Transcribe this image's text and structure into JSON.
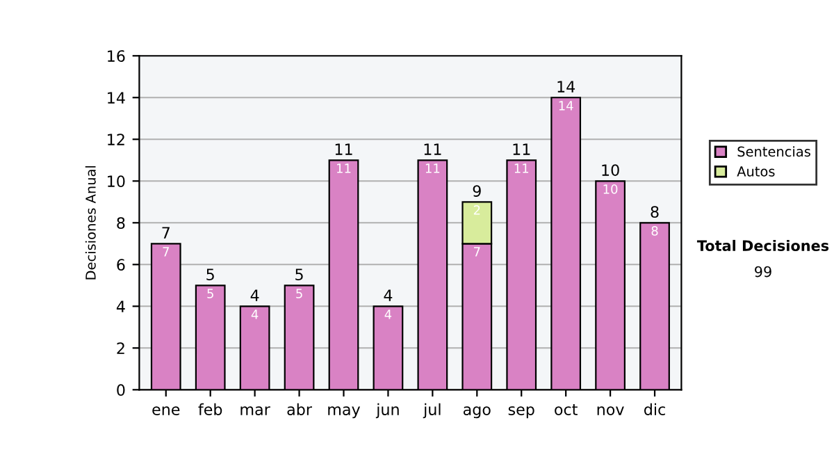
{
  "chart_data": {
    "type": "bar",
    "stacked": true,
    "ylabel": "Decisiones Anual",
    "categories": [
      "ene",
      "feb",
      "mar",
      "abr",
      "may",
      "jun",
      "jul",
      "ago",
      "sep",
      "oct",
      "nov",
      "dic"
    ],
    "series": [
      {
        "name": "Sentencias",
        "color": "#d982c4",
        "values": [
          7,
          5,
          4,
          5,
          11,
          4,
          11,
          7,
          11,
          14,
          10,
          8
        ],
        "value_labels": [
          "7",
          "5",
          "4",
          "5",
          "11",
          "4",
          "11",
          "7",
          "11",
          "14",
          "10",
          "8"
        ]
      },
      {
        "name": "Autos",
        "color": "#d8ec9c",
        "values": [
          null,
          null,
          null,
          null,
          null,
          null,
          null,
          2,
          null,
          null,
          null,
          null
        ],
        "value_labels": [
          null,
          null,
          null,
          null,
          null,
          null,
          null,
          "2",
          null,
          null,
          null,
          null
        ]
      }
    ],
    "totals": [
      "7",
      "5",
      "4",
      "5",
      "11",
      "4",
      "11",
      "9",
      "11",
      "14",
      "10",
      "8"
    ],
    "ylim": [
      0,
      16
    ],
    "yticks": [
      0,
      2,
      4,
      6,
      8,
      10,
      12,
      14,
      16
    ],
    "grid": "y",
    "legend": "right",
    "annotations": [
      "Total Decisiones",
      "99"
    ]
  }
}
